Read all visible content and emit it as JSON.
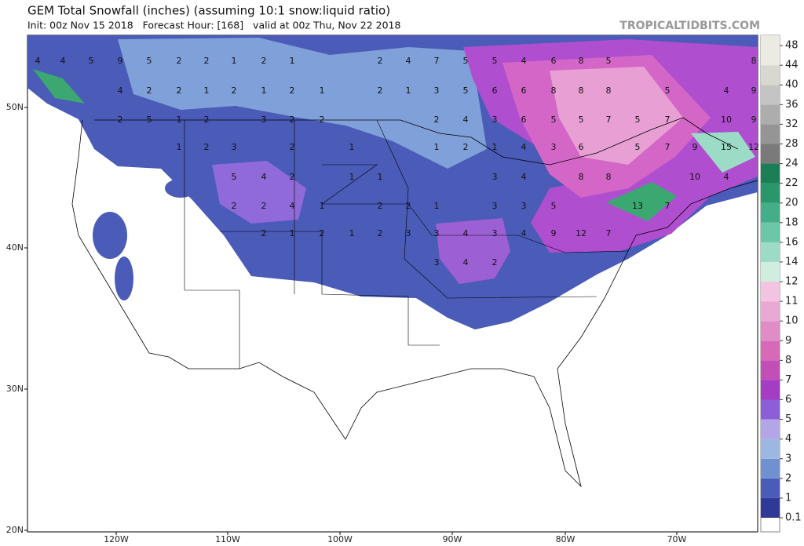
{
  "header": {
    "title": "GEM Total Snowfall (inches) (assuming 10:1 snow:liquid ratio)",
    "subtitle": "Init: 00z Nov 15 2018   Forecast Hour: [168]   valid at 00z Thu, Nov 22 2018",
    "watermark": "TROPICALTIDBITS.COM"
  },
  "map": {
    "lat_labels": [
      "50N",
      "40N",
      "30N",
      "20N"
    ],
    "lon_labels": [
      "120W",
      "110W",
      "100W",
      "90W",
      "80W",
      "70W"
    ],
    "contour_labels": [
      4,
      4,
      5,
      9,
      5,
      2,
      2,
      1,
      2,
      1,
      2,
      4,
      7,
      5,
      5,
      4,
      6,
      8,
      5,
      8,
      4,
      2,
      2,
      1,
      2,
      1,
      2,
      1,
      2,
      1,
      3,
      5,
      6,
      6,
      8,
      8,
      8,
      5,
      4,
      9,
      2,
      5,
      1,
      2,
      3,
      2,
      2,
      2,
      4,
      3,
      6,
      5,
      5,
      7,
      5,
      7,
      10,
      9,
      1,
      2,
      3,
      2,
      1,
      1,
      2,
      1,
      4,
      3,
      6,
      5,
      7,
      9,
      15,
      12,
      5,
      4,
      2,
      1,
      1,
      3,
      4,
      8,
      8,
      10,
      4,
      2,
      2,
      4,
      1,
      2,
      2,
      1,
      3,
      3,
      5,
      13,
      7,
      2,
      1,
      2,
      1,
      2,
      3,
      3,
      4,
      3,
      4,
      9,
      12,
      7,
      3,
      4,
      2
    ]
  },
  "colorbar": {
    "levels": [
      0.1,
      1,
      2,
      3,
      4,
      5,
      6,
      7,
      8,
      9,
      10,
      11,
      12,
      14,
      16,
      18,
      20,
      22,
      24,
      28,
      32,
      36,
      40,
      44,
      48
    ],
    "colors": [
      "#2f3a96",
      "#4a5cb8",
      "#7090d0",
      "#9cb8e2",
      "#b3a6e6",
      "#8c5fd8",
      "#a43cc4",
      "#c24fb8",
      "#d66ab8",
      "#e08cc6",
      "#eaa8d4",
      "#f2c4e2",
      "#cfeee0",
      "#9cdcc6",
      "#6cc6a8",
      "#44ae88",
      "#2a966c",
      "#1c7e56",
      "#7a7a7a",
      "#959595",
      "#adadad",
      "#c4c4c4",
      "#d8d8d0",
      "#ebebe2"
    ]
  }
}
